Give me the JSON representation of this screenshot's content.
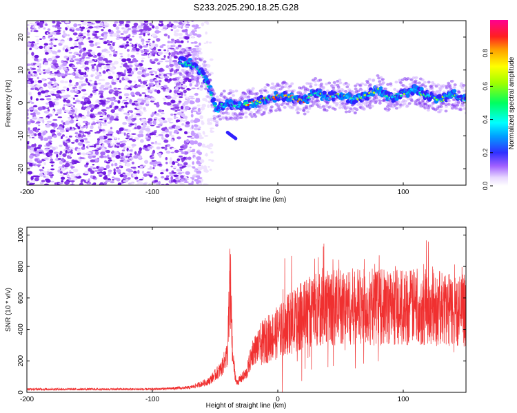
{
  "title": "S233.2025.290.18.25.G28",
  "chart_data": [
    {
      "type": "heatmap",
      "xlabel": "Height of straight line (km)",
      "ylabel": "Frequency (Hz)",
      "xlim": [
        -200,
        150
      ],
      "ylim": [
        -25,
        25
      ],
      "x_ticks": [
        -200,
        -100,
        0,
        100
      ],
      "x_tick_labels": [
        "-200",
        "-100",
        "0",
        "100"
      ],
      "y_ticks": [
        -20,
        -10,
        0,
        10,
        20
      ],
      "y_tick_labels": [
        "-20",
        "-10",
        "0",
        "10",
        "20"
      ],
      "colorbar": {
        "label": "Normalized spectral amplitude",
        "range": [
          0,
          1
        ],
        "ticks": [
          0.0,
          0.2,
          0.4,
          0.6,
          0.8
        ],
        "tick_labels": [
          "0.0",
          "0.2",
          "0.4",
          "0.6",
          "0.8"
        ]
      },
      "noise_region_x": [
        -200,
        -60
      ],
      "signal_track": [
        {
          "x": -78,
          "y": 12.5
        },
        {
          "x": -70,
          "y": 12
        },
        {
          "x": -65,
          "y": 11
        },
        {
          "x": -60,
          "y": 9
        },
        {
          "x": -56,
          "y": 6
        },
        {
          "x": -52,
          "y": 2
        },
        {
          "x": -49,
          "y": -3
        },
        {
          "x": -45,
          "y": -1
        },
        {
          "x": -38,
          "y": -0.5
        },
        {
          "x": -30,
          "y": -1
        },
        {
          "x": -20,
          "y": 0
        },
        {
          "x": -10,
          "y": 1
        },
        {
          "x": 0,
          "y": 2
        },
        {
          "x": 10,
          "y": 2
        },
        {
          "x": 20,
          "y": 0.5
        },
        {
          "x": 30,
          "y": 3
        },
        {
          "x": 40,
          "y": 2
        },
        {
          "x": 50,
          "y": 2.5
        },
        {
          "x": 60,
          "y": 1
        },
        {
          "x": 70,
          "y": 2
        },
        {
          "x": 80,
          "y": 4
        },
        {
          "x": 90,
          "y": 1.5
        },
        {
          "x": 100,
          "y": 3
        },
        {
          "x": 110,
          "y": 4
        },
        {
          "x": 120,
          "y": 2
        },
        {
          "x": 130,
          "y": 1
        },
        {
          "x": 140,
          "y": 2.5
        },
        {
          "x": 150,
          "y": 1
        }
      ],
      "secondary_feature": [
        {
          "x": -40,
          "y": -9
        },
        {
          "x": -33,
          "y": -11
        }
      ]
    },
    {
      "type": "line",
      "xlabel": "Height of straight line (km)",
      "ylabel": "SNR (10 * v/v)",
      "xlim": [
        -200,
        150
      ],
      "ylim": [
        0,
        1050
      ],
      "x_ticks": [
        -200,
        -100,
        0,
        100
      ],
      "x_tick_labels": [
        "-200",
        "-100",
        "0",
        "100"
      ],
      "y_ticks": [
        0,
        200,
        400,
        600,
        800,
        1000
      ],
      "y_tick_labels": [
        "0",
        "200",
        "400",
        "600",
        "800",
        "1000"
      ],
      "color": "#f03030",
      "envelope": [
        {
          "x": -200,
          "y": 20
        },
        {
          "x": -100,
          "y": 20
        },
        {
          "x": -70,
          "y": 30
        },
        {
          "x": -55,
          "y": 70
        },
        {
          "x": -45,
          "y": 150
        },
        {
          "x": -40,
          "y": 250
        },
        {
          "x": -38,
          "y": 700
        },
        {
          "x": -36,
          "y": 220
        },
        {
          "x": -33,
          "y": 60
        },
        {
          "x": -25,
          "y": 120
        },
        {
          "x": -20,
          "y": 260
        },
        {
          "x": -10,
          "y": 330
        },
        {
          "x": 0,
          "y": 380
        },
        {
          "x": 10,
          "y": 440
        },
        {
          "x": 20,
          "y": 490
        },
        {
          "x": 30,
          "y": 530
        },
        {
          "x": 40,
          "y": 540
        },
        {
          "x": 60,
          "y": 545
        },
        {
          "x": 80,
          "y": 540
        },
        {
          "x": 100,
          "y": 545
        },
        {
          "x": 120,
          "y": 540
        },
        {
          "x": 140,
          "y": 520
        },
        {
          "x": 150,
          "y": 520
        }
      ]
    }
  ]
}
